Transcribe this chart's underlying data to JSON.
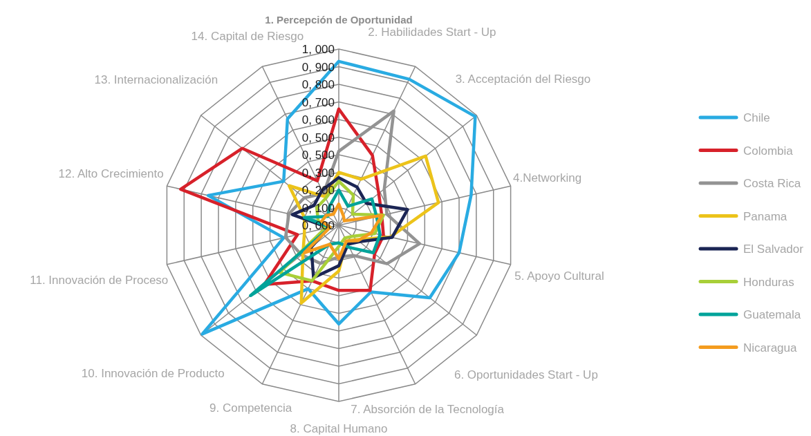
{
  "chart_data": {
    "type": "radar",
    "categories": [
      "1. Percepción de Oportunidad",
      "2. Habilidades Start - Up",
      "3. Acceptación del Riesgo",
      "4.Networking",
      "5. Apoyo Cultural",
      "6. Oportunidades Start - Up",
      "7. Absorción de la Tecnología",
      "8. Capital Humano",
      "9. Competencia",
      "10. Innovación de Producto",
      "11. Innovación de Proceso",
      "12. Alto Crecimiento",
      "13. Internacionalización",
      "14. Capital de Riesgo"
    ],
    "ylim": [
      0,
      1
    ],
    "yticks": [
      {
        "value": 0,
        "label": "0, 000"
      },
      {
        "value": 0.1,
        "label": "0, 100"
      },
      {
        "value": 0.2,
        "label": "0, 200"
      },
      {
        "value": 0.3,
        "label": "0, 300"
      },
      {
        "value": 0.4,
        "label": "0, 500"
      },
      {
        "value": 0.5,
        "label": "0, 500"
      },
      {
        "value": 0.6,
        "label": "0, 600"
      },
      {
        "value": 0.7,
        "label": "0, 700"
      },
      {
        "value": 0.8,
        "label": "0, 800"
      },
      {
        "value": 0.9,
        "label": "0, 900"
      },
      {
        "value": 1,
        "label": "1, 000"
      }
    ],
    "grid": true,
    "legend": "right",
    "series": [
      {
        "name": "Chile",
        "color": "#29abe2",
        "values": [
          0.93,
          0.92,
          0.99,
          0.77,
          0.7,
          0.66,
          0.42,
          0.56,
          0.4,
          0.99,
          0.32,
          0.76,
          0.4,
          0.67
        ]
      },
      {
        "name": "Colombia",
        "color": "#d7212a",
        "values": [
          0.66,
          0.44,
          0.29,
          0.25,
          0.26,
          0.26,
          0.41,
          0.37,
          0.35,
          0.54,
          0.24,
          0.92,
          0.7,
          0.28
        ]
      },
      {
        "name": "Costa Rica",
        "color": "#939393",
        "values": [
          0.42,
          0.72,
          0.33,
          0.28,
          0.47,
          0.35,
          0.19,
          0.18,
          0.24,
          0.27,
          0.31,
          0.29,
          0.25,
          0.2
        ]
      },
      {
        "name": "Panama",
        "color": "#ecc31a",
        "values": [
          0.3,
          0.29,
          0.63,
          0.58,
          0.3,
          0.13,
          0.1,
          0.26,
          0.49,
          0.26,
          0.2,
          0.2,
          0.36,
          0.18
        ]
      },
      {
        "name": "El Salvador",
        "color": "#1b2554",
        "values": [
          0.27,
          0.24,
          0.2,
          0.4,
          0.31,
          0.15,
          0.12,
          0.23,
          0.33,
          0.2,
          0.06,
          0.27,
          0.18,
          0.22
        ]
      },
      {
        "name": "Honduras",
        "color": "#a8cf38",
        "values": [
          0.25,
          0.19,
          0.1,
          0.26,
          0.21,
          0.1,
          0.08,
          0.12,
          0.35,
          0.43,
          0.08,
          0.12,
          0.16,
          0.17
        ]
      },
      {
        "name": "Guatemala",
        "color": "#00a39a",
        "values": [
          0.2,
          0.12,
          0.24,
          0.22,
          0.24,
          0.25,
          0.14,
          0.1,
          0.12,
          0.64,
          0.05,
          0.2,
          0.08,
          0.12
        ]
      },
      {
        "name": "Nicaragua",
        "color": "#f49c1f",
        "values": [
          0.12,
          0.06,
          0.04,
          0.25,
          0.19,
          0.14,
          0.1,
          0.19,
          0.12,
          0.25,
          0.05,
          0.1,
          0.09,
          0.07
        ]
      }
    ]
  }
}
